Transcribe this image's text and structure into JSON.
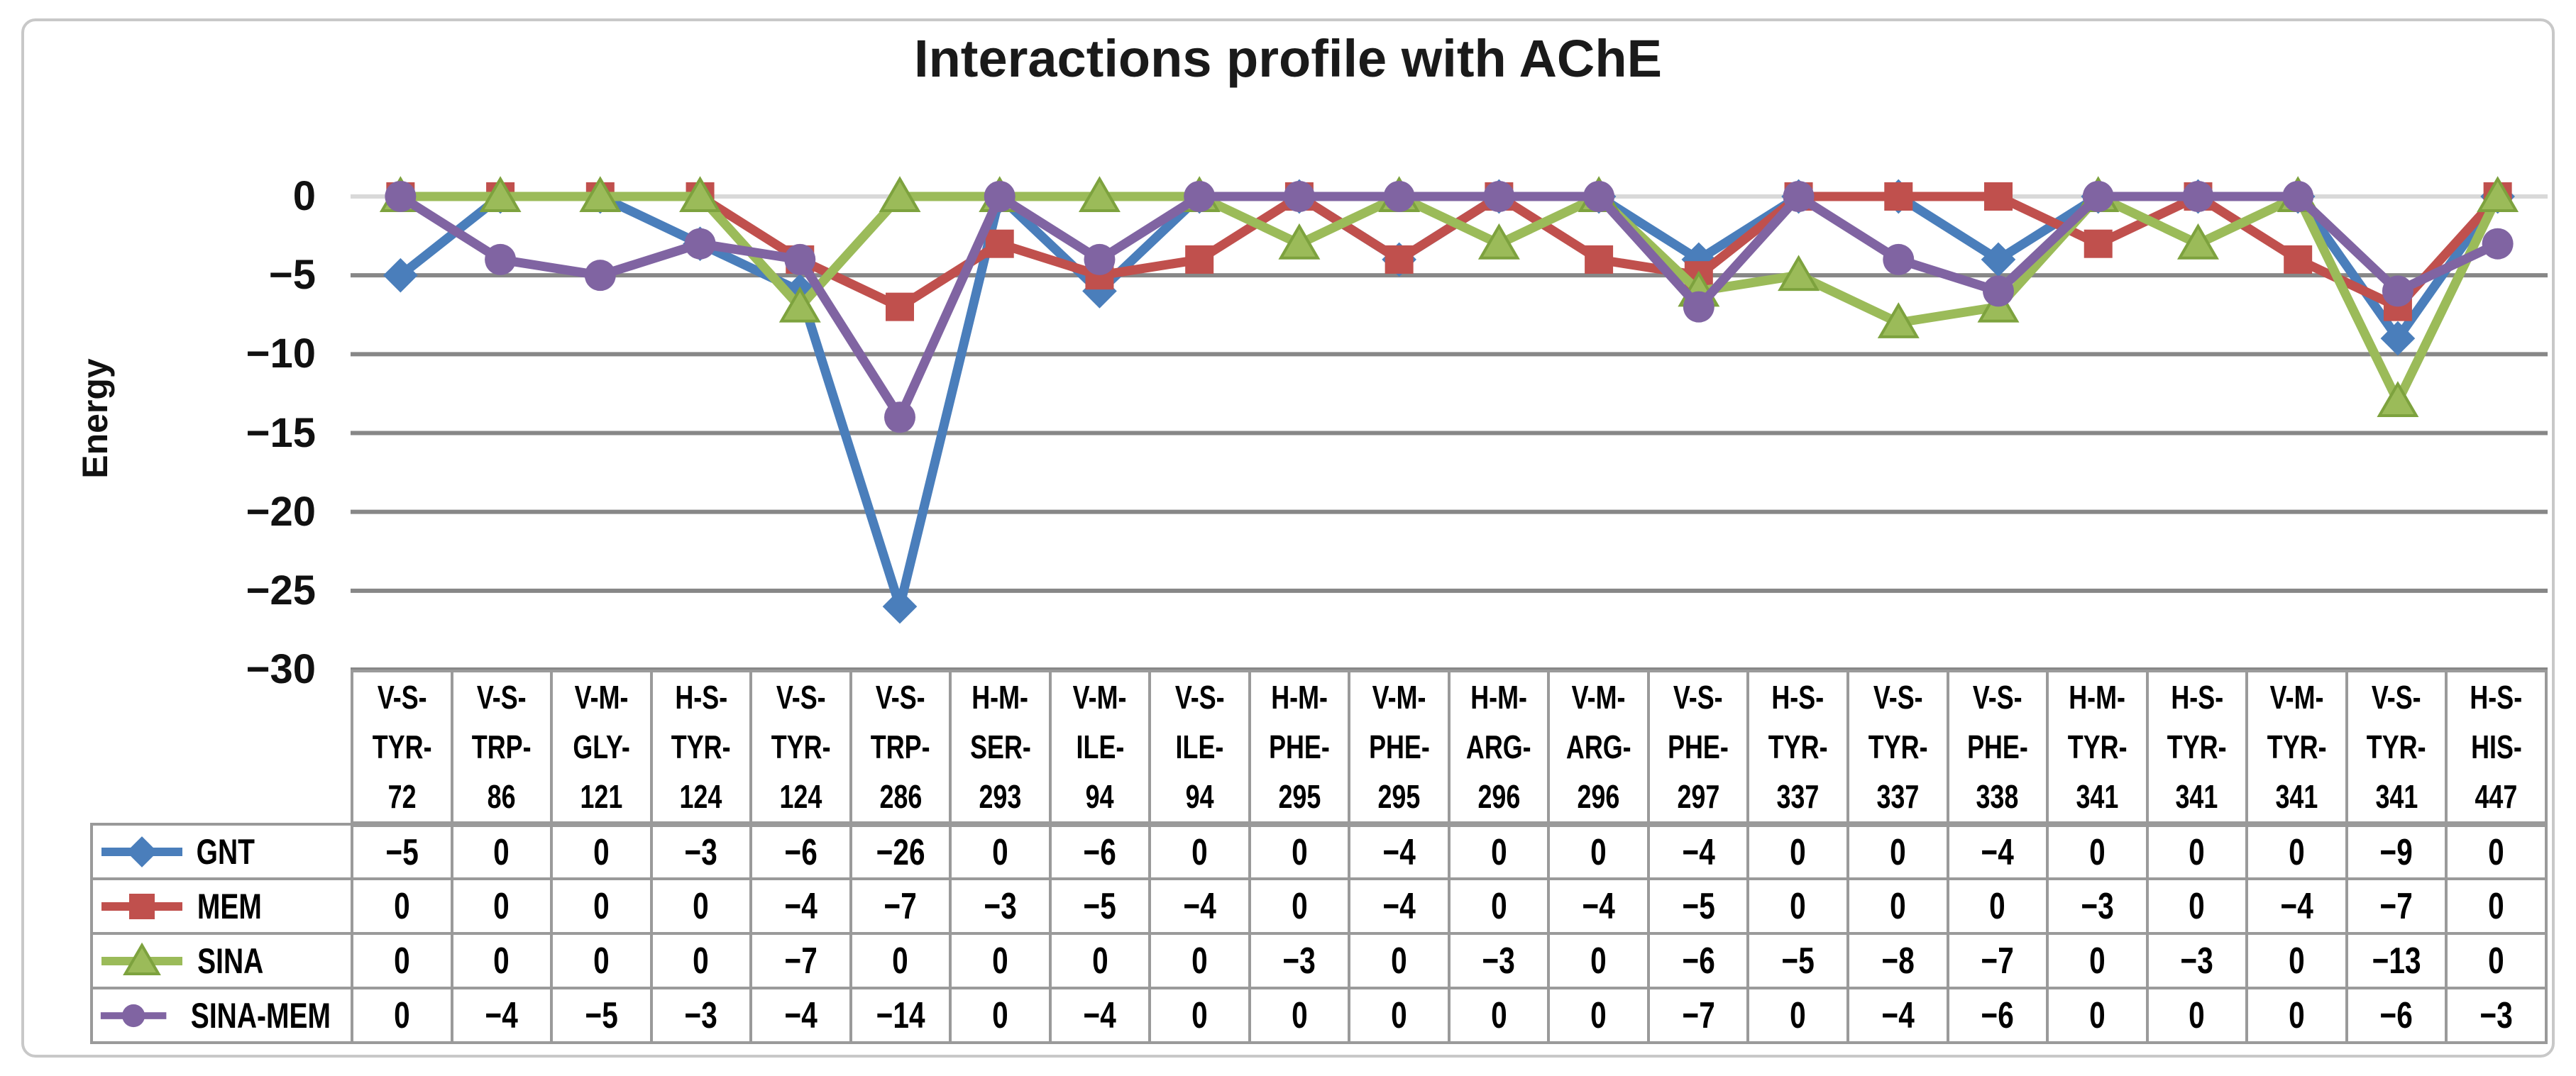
{
  "chart_data": {
    "type": "line",
    "title": "Interactions profile with AChE",
    "xlabel": "",
    "ylabel": "Energy",
    "ylim": [
      -30,
      0
    ],
    "yticks": [
      0,
      -5,
      -10,
      -15,
      -20,
      -25,
      -30
    ],
    "grid": true,
    "gridline_color": "#878787",
    "zero_line_color": "#d9d9d9",
    "table_border_color": "#9a9a9a",
    "legend_position": "table-left",
    "categories": [
      "V-S-TYR-72",
      "V-S-TRP-86",
      "V-M-GLY-121",
      "H-S-TYR-124",
      "V-S-TYR-124",
      "V-S-TRP-286",
      "H-M-SER-293",
      "V-M-ILE-94",
      "V-S-ILE-94",
      "H-M-PHE-295",
      "V-M-PHE-295",
      "H-M-ARG-296",
      "V-M-ARG-296",
      "V-S-PHE-297",
      "H-S-TYR-337",
      "V-S-TYR-337",
      "V-S-PHE-338",
      "H-M-TYR-341",
      "H-S-TYR-341",
      "V-M-TYR-341",
      "V-S-TYR-341",
      "H-S-HIS-447"
    ],
    "series": [
      {
        "name": "GNT",
        "color": "#4A7EBB",
        "marker": "diamond",
        "values": [
          -5,
          0,
          0,
          -3,
          -6,
          -26,
          0,
          -6,
          0,
          0,
          -4,
          0,
          0,
          -4,
          0,
          0,
          -4,
          0,
          0,
          0,
          -9,
          0
        ]
      },
      {
        "name": "MEM",
        "color": "#C0504D",
        "marker": "square",
        "values": [
          0,
          0,
          0,
          0,
          -4,
          -7,
          -3,
          -5,
          -4,
          0,
          -4,
          0,
          -4,
          -5,
          0,
          0,
          0,
          -3,
          0,
          -4,
          -7,
          0
        ]
      },
      {
        "name": "SINA",
        "color": "#9BBB59",
        "marker": "triangle",
        "values": [
          0,
          0,
          0,
          0,
          -7,
          0,
          0,
          0,
          0,
          -3,
          0,
          -3,
          0,
          -6,
          -5,
          -8,
          -7,
          0,
          -3,
          0,
          -13,
          0
        ]
      },
      {
        "name": "SINA-MEM",
        "color": "#8064A2",
        "marker": "circle",
        "values": [
          0,
          -4,
          -5,
          -3,
          -4,
          -14,
          0,
          -4,
          0,
          0,
          0,
          0,
          0,
          -7,
          0,
          -4,
          -6,
          0,
          0,
          0,
          -6,
          -3
        ]
      }
    ]
  }
}
